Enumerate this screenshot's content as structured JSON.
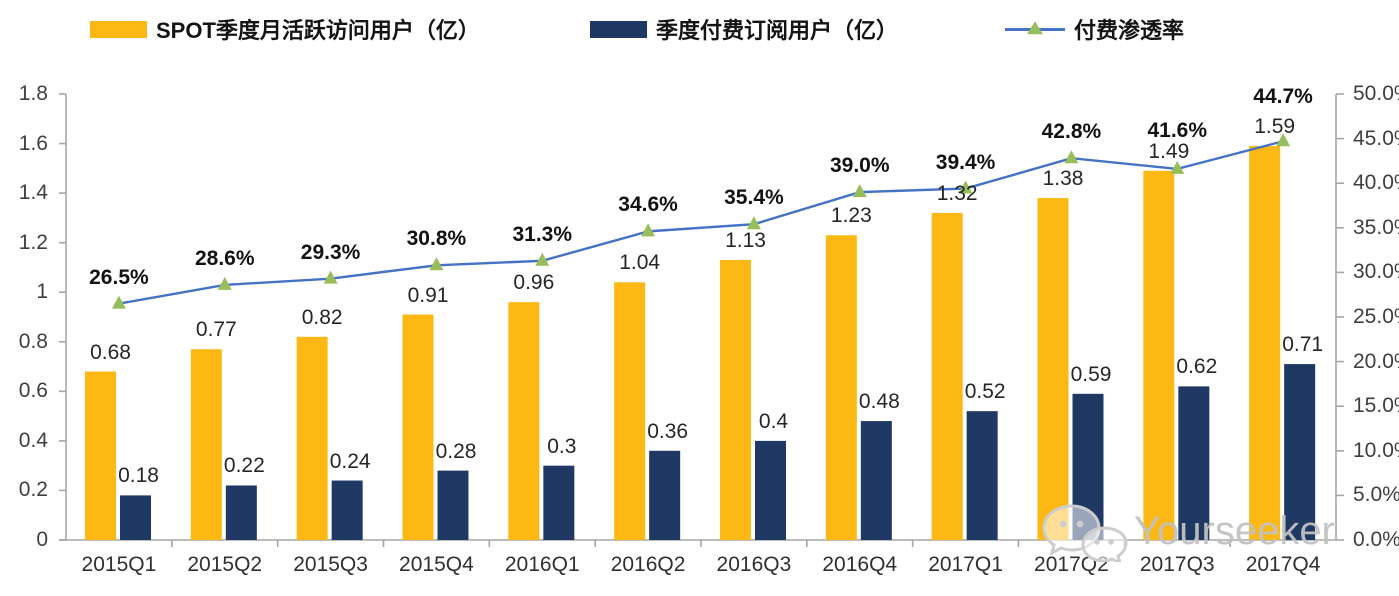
{
  "legend": {
    "mau_label": "SPOT季度月活跃访问用户（亿）",
    "subs_label": "季度付费订阅用户（亿）",
    "penetration_label": "付费渗透率"
  },
  "colors": {
    "mau_bar": "#FDB813",
    "subs_bar": "#1F3864",
    "line": "#4472C4",
    "marker": "#97BE5A",
    "axis": "#A6A6A6",
    "watermark": "#C1C1C1"
  },
  "watermark": {
    "text": "Yourseeker",
    "icon": "wechat-icon"
  },
  "chart_data": {
    "type": "bar",
    "subtype": "grouped-bars-with-line",
    "categories": [
      "2015Q1",
      "2015Q2",
      "2015Q3",
      "2015Q4",
      "2016Q1",
      "2016Q2",
      "2016Q3",
      "2016Q4",
      "2017Q1",
      "2017Q2",
      "2017Q3",
      "2017Q4"
    ],
    "series": [
      {
        "name": "SPOT季度月活跃访问用户（亿）",
        "kind": "bar",
        "axis": "left",
        "color": "#FDB813",
        "values": [
          0.68,
          0.77,
          0.82,
          0.91,
          0.96,
          1.04,
          1.13,
          1.23,
          1.32,
          1.38,
          1.49,
          1.59
        ],
        "labels": [
          "0.68",
          "0.77",
          "0.82",
          "0.91",
          "0.96",
          "1.04",
          "1.13",
          "1.23",
          "1.32",
          "1.38",
          "1.49",
          "1.59"
        ]
      },
      {
        "name": "季度付费订阅用户（亿）",
        "kind": "bar",
        "axis": "left",
        "color": "#1F3864",
        "values": [
          0.18,
          0.22,
          0.24,
          0.28,
          0.3,
          0.36,
          0.4,
          0.48,
          0.52,
          0.59,
          0.62,
          0.71
        ],
        "labels": [
          "0.18",
          "0.22",
          "0.24",
          "0.28",
          "0.3",
          "0.36",
          "0.4",
          "0.48",
          "0.52",
          "0.59",
          "0.62",
          "0.71"
        ]
      },
      {
        "name": "付费渗透率",
        "kind": "line",
        "axis": "right",
        "color": "#4472C4",
        "marker": "triangle",
        "marker_color": "#97BE5A",
        "values": [
          26.5,
          28.6,
          29.3,
          30.8,
          31.3,
          34.6,
          35.4,
          39.0,
          39.4,
          42.8,
          41.6,
          44.7
        ],
        "labels": [
          "26.5%",
          "28.6%",
          "29.3%",
          "30.8%",
          "31.3%",
          "34.6%",
          "35.4%",
          "39.0%",
          "39.4%",
          "42.8%",
          "41.6%",
          "44.7%"
        ]
      }
    ],
    "left_axis": {
      "min": 0,
      "max": 1.8,
      "ticks": [
        "0",
        "0.2",
        "0.4",
        "0.6",
        "0.8",
        "1",
        "1.2",
        "1.4",
        "1.6",
        "1.8"
      ]
    },
    "right_axis": {
      "min": 0,
      "max": 50,
      "ticks": [
        "0.0%",
        "5.0%",
        "10.0%",
        "15.0%",
        "20.0%",
        "25.0%",
        "30.0%",
        "35.0%",
        "40.0%",
        "45.0%",
        "50.0%"
      ]
    },
    "title": "",
    "xlabel": "",
    "ylabel": "",
    "grid": false,
    "legend_position": "top"
  }
}
